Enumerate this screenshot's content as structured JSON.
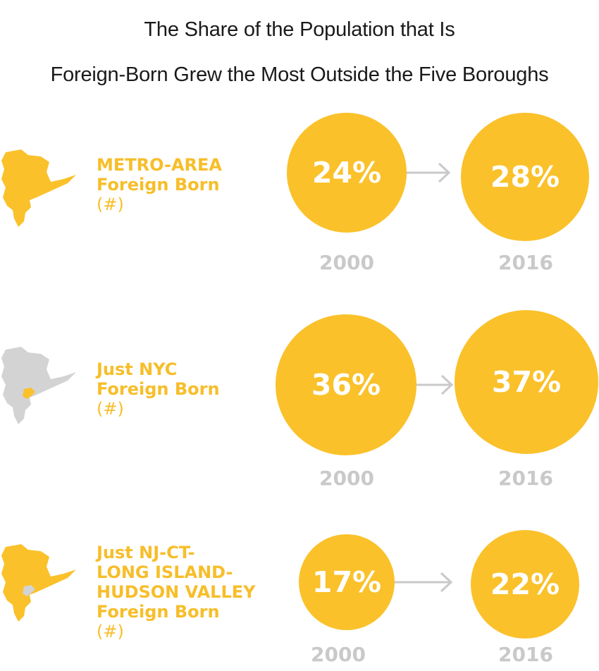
{
  "title_line1": "The Share of the Population that Is",
  "title_line2": "Foreign-Born Grew the Most Outside the Five Boroughs",
  "colors": {
    "accent": "#FAC12A",
    "label": "#F7BE2A",
    "muted": "#C9C9C9",
    "map_gray": "#D3D3D3"
  },
  "chart_data": [
    {
      "type": "bubble",
      "group_label": [
        "METRO-AREA",
        "Foreign Born",
        "(#)"
      ],
      "categories": [
        "2000",
        "2016"
      ],
      "values": [
        24,
        28
      ],
      "value_labels": [
        "24%",
        "28%"
      ],
      "map_highlight": "metro-area"
    },
    {
      "type": "bubble",
      "group_label": [
        "Just NYC",
        "Foreign Born",
        "(#)"
      ],
      "categories": [
        "2000",
        "2016"
      ],
      "values": [
        36,
        37
      ],
      "value_labels": [
        "36%",
        "37%"
      ],
      "map_highlight": "nyc"
    },
    {
      "type": "bubble",
      "group_label": [
        "Just NJ-CT-",
        "LONG ISLAND-",
        "HUDSON VALLEY",
        "Foreign Born",
        "(#)"
      ],
      "categories": [
        "2000",
        "2016"
      ],
      "values": [
        17,
        22
      ],
      "value_labels": [
        "17%",
        "22%"
      ],
      "map_highlight": "outside-nyc"
    }
  ]
}
